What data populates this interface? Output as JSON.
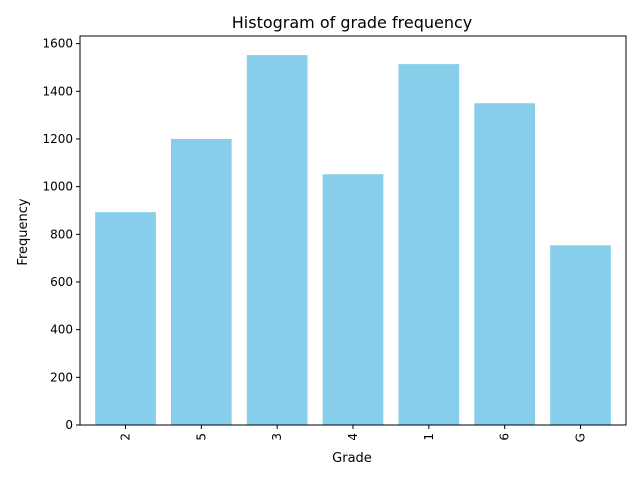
{
  "chart_data": {
    "type": "bar",
    "title": "Histogram of grade frequency",
    "xlabel": "Grade",
    "ylabel": "Frequency",
    "categories": [
      "2",
      "5",
      "3",
      "4",
      "1",
      "6",
      "G"
    ],
    "values": [
      893,
      1200,
      1552,
      1052,
      1514,
      1350,
      754
    ],
    "ylim": [
      0,
      1600
    ],
    "yticks": [
      0,
      200,
      400,
      600,
      800,
      1000,
      1200,
      1400,
      1600
    ],
    "bar_color": "#87CEEB",
    "x_tick_rotation": "vertical",
    "grid": false,
    "legend": "none"
  }
}
